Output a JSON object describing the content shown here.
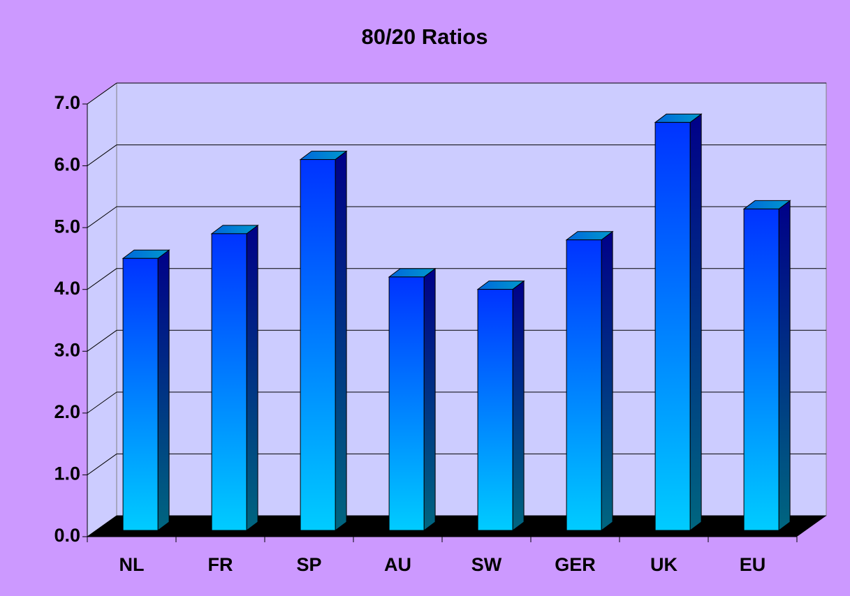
{
  "chart_data": {
    "type": "bar3d",
    "title": "80/20 Ratios",
    "categories": [
      "NL",
      "FR",
      "SP",
      "AU",
      "SW",
      "GER",
      "UK",
      "EU"
    ],
    "values": [
      4.4,
      4.8,
      6.0,
      4.1,
      3.9,
      4.7,
      6.6,
      5.2
    ],
    "color": "#0033ff",
    "ylim": [
      0,
      7
    ],
    "yticks": [
      {
        "value": 0,
        "label": "0.0"
      },
      {
        "value": 1,
        "label": "1.0"
      },
      {
        "value": 2,
        "label": "2.0"
      },
      {
        "value": 3,
        "label": "3.0"
      },
      {
        "value": 4,
        "label": "4.0"
      },
      {
        "value": 5,
        "label": "5.0"
      },
      {
        "value": 6,
        "label": "6.0"
      },
      {
        "value": 7,
        "label": "7.0"
      }
    ],
    "grid": true
  }
}
